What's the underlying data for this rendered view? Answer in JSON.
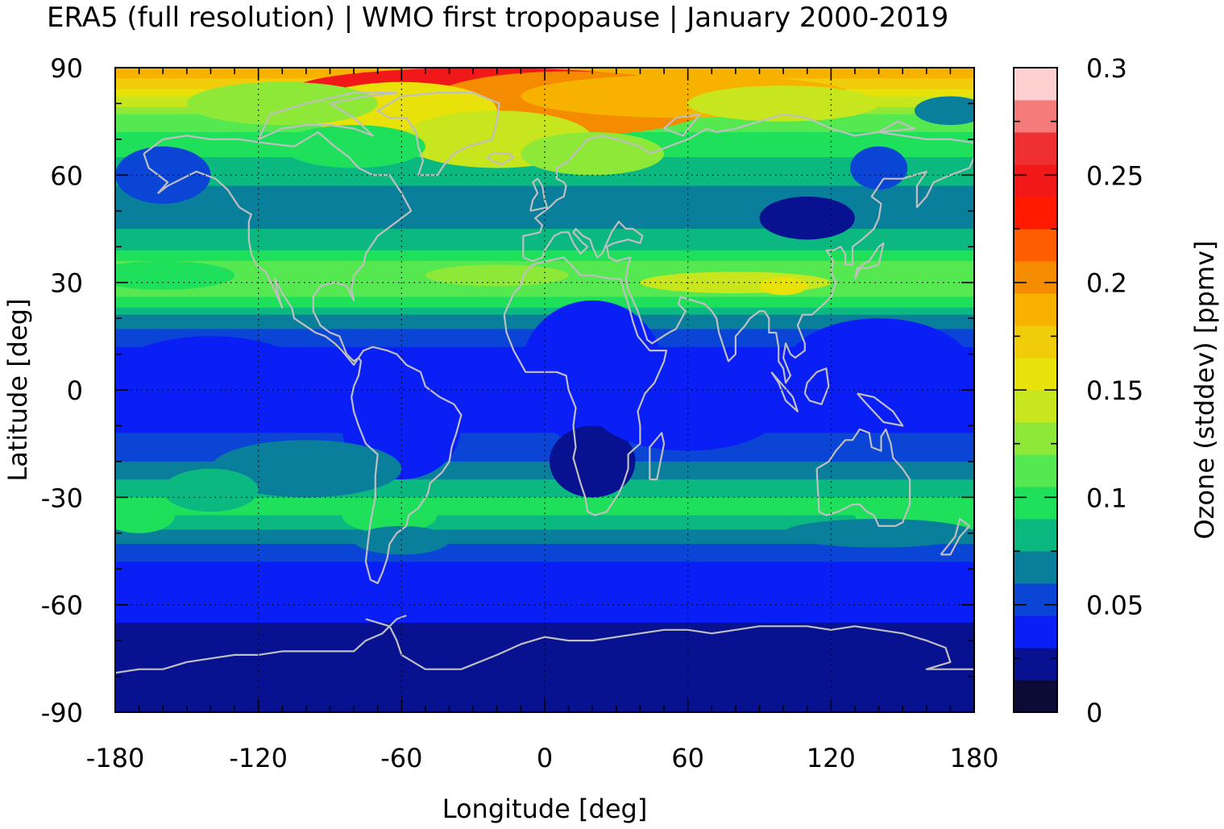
{
  "chart_data": {
    "type": "heatmap",
    "title": "ERA5 (full resolution) | WMO first tropopause | January 2000-2019",
    "xlabel": "Longitude [deg]",
    "ylabel": "Latitude [deg]",
    "colorbar_label": "Ozone (stddev) [ppmv]",
    "xlim": [
      -180,
      180
    ],
    "ylim": [
      -90,
      90
    ],
    "x_ticks": [
      -180,
      -120,
      -60,
      0,
      60,
      120,
      180
    ],
    "y_ticks": [
      90,
      60,
      30,
      0,
      -30,
      -60,
      -90
    ],
    "colorbar_ticks": [
      "0.3",
      "0.25",
      "0.2",
      "0.15",
      "0.1",
      "0.05",
      "0"
    ],
    "colorbar_range": [
      0,
      0.3
    ],
    "grid": true,
    "palette": [
      "#0b0b35",
      "#081290",
      "#0a1ef6",
      "#0a45d6",
      "#0a7f9c",
      "#0ab880",
      "#1ee05a",
      "#55e850",
      "#8ee838",
      "#c8e61e",
      "#e8e20a",
      "#f0cc0a",
      "#f7b200",
      "#f58c00",
      "#ff5e00",
      "#ff1a00",
      "#f01818",
      "#ef3030",
      "#f57a7a",
      "#fed0d0"
    ],
    "zonal_mean_profile": {
      "latitudes": [
        90,
        85,
        80,
        75,
        70,
        65,
        60,
        55,
        50,
        45,
        40,
        35,
        30,
        25,
        20,
        15,
        10,
        5,
        0,
        -5,
        -10,
        -15,
        -20,
        -25,
        -30,
        -35,
        -40,
        -45,
        -50,
        -55,
        -60,
        -65,
        -70,
        -75,
        -80,
        -85,
        -90
      ],
      "values": [
        0.19,
        0.17,
        0.14,
        0.11,
        0.1,
        0.09,
        0.08,
        0.07,
        0.065,
        0.075,
        0.085,
        0.11,
        0.12,
        0.1,
        0.07,
        0.05,
        0.04,
        0.035,
        0.035,
        0.035,
        0.04,
        0.05,
        0.06,
        0.075,
        0.09,
        0.09,
        0.07,
        0.05,
        0.04,
        0.035,
        0.035,
        0.03,
        0.025,
        0.02,
        0.02,
        0.02,
        0.02
      ]
    },
    "coastline_color": "#bfbfbf"
  }
}
